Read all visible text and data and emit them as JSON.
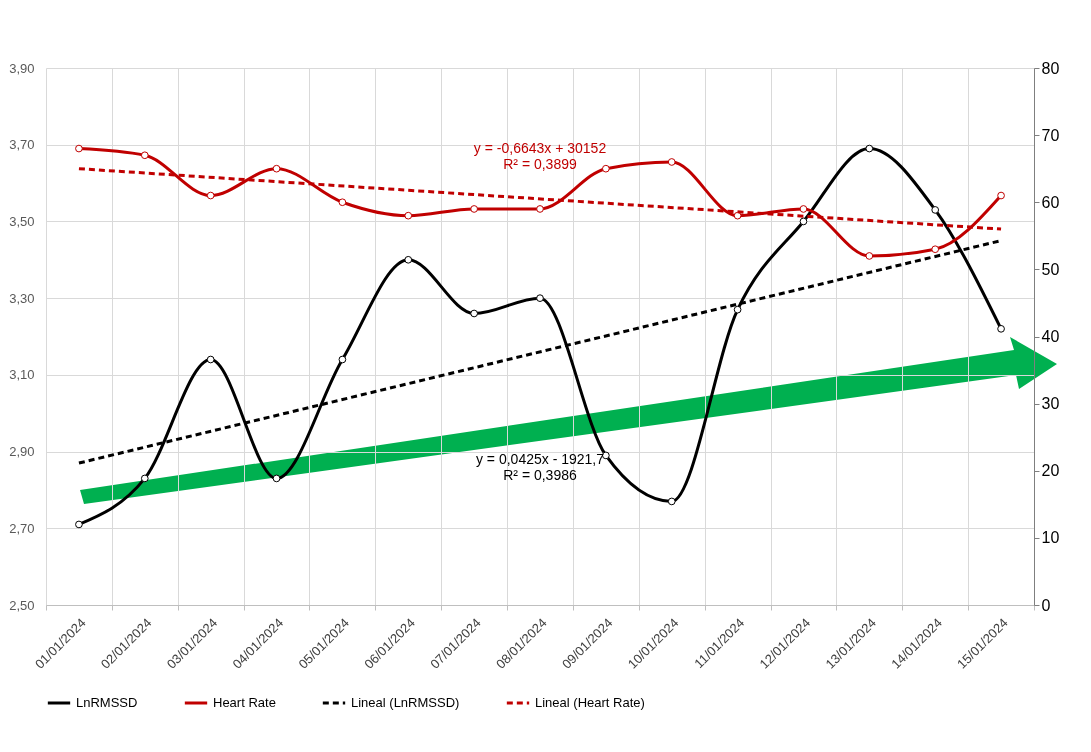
{
  "chart_data": {
    "type": "line",
    "categories": [
      "01/01/2024",
      "02/01/2024",
      "03/01/2024",
      "04/01/2024",
      "05/01/2024",
      "06/01/2024",
      "07/01/2024",
      "08/01/2024",
      "09/01/2024",
      "10/01/2024",
      "11/01/2024",
      "12/01/2024",
      "13/01/2024",
      "14/01/2024",
      "15/01/2024"
    ],
    "series": [
      {
        "name": "LnRMSSD",
        "color": "#000000",
        "marker": "circle",
        "values": [
          2.71,
          2.83,
          3.14,
          2.83,
          3.14,
          3.4,
          3.26,
          3.3,
          2.89,
          2.77,
          3.27,
          3.5,
          3.69,
          3.53,
          3.22
        ]
      },
      {
        "name": "Heart Rate",
        "color": "#c00000",
        "marker": "circle",
        "axis": "y2",
        "values": [
          68,
          67,
          61,
          65,
          60,
          58,
          59,
          59,
          65,
          66,
          58,
          59,
          52,
          53,
          61
        ]
      },
      {
        "name": "Lineal (LnRMSSD)",
        "color": "#000000",
        "marker": "none",
        "line_style": "dashed",
        "x": [
          "01/01/2024",
          "15/01/2024"
        ],
        "values": [
          2.87,
          3.45
        ]
      },
      {
        "name": "Lineal (Heart Rate)",
        "color": "#c00000",
        "marker": "none",
        "line_style": "dashed",
        "axis": "y2",
        "x": [
          "01/01/2024",
          "15/01/2024"
        ],
        "values": [
          65,
          56
        ]
      }
    ],
    "ylim": [
      2.5,
      3.9
    ],
    "yticks": [
      {
        "value": 2.5,
        "label": "2,50"
      },
      {
        "value": 2.7,
        "label": "2,70"
      },
      {
        "value": 2.9,
        "label": "2,90"
      },
      {
        "value": 3.1,
        "label": "3,10"
      },
      {
        "value": 3.3,
        "label": "3,30"
      },
      {
        "value": 3.5,
        "label": "3,50"
      },
      {
        "value": 3.7,
        "label": "3,70"
      },
      {
        "value": 3.9,
        "label": "3,90"
      }
    ],
    "y2lim": [
      0,
      80
    ],
    "y2ticks": [
      0,
      10,
      20,
      30,
      40,
      50,
      60,
      70,
      80
    ],
    "annotations": [
      "y = 0,0425x - 1921,7\nR² = 0,3986",
      "y = -0,6643x + 30152\nR² = 0,3899"
    ],
    "grid": true,
    "legend": "bottom"
  }
}
